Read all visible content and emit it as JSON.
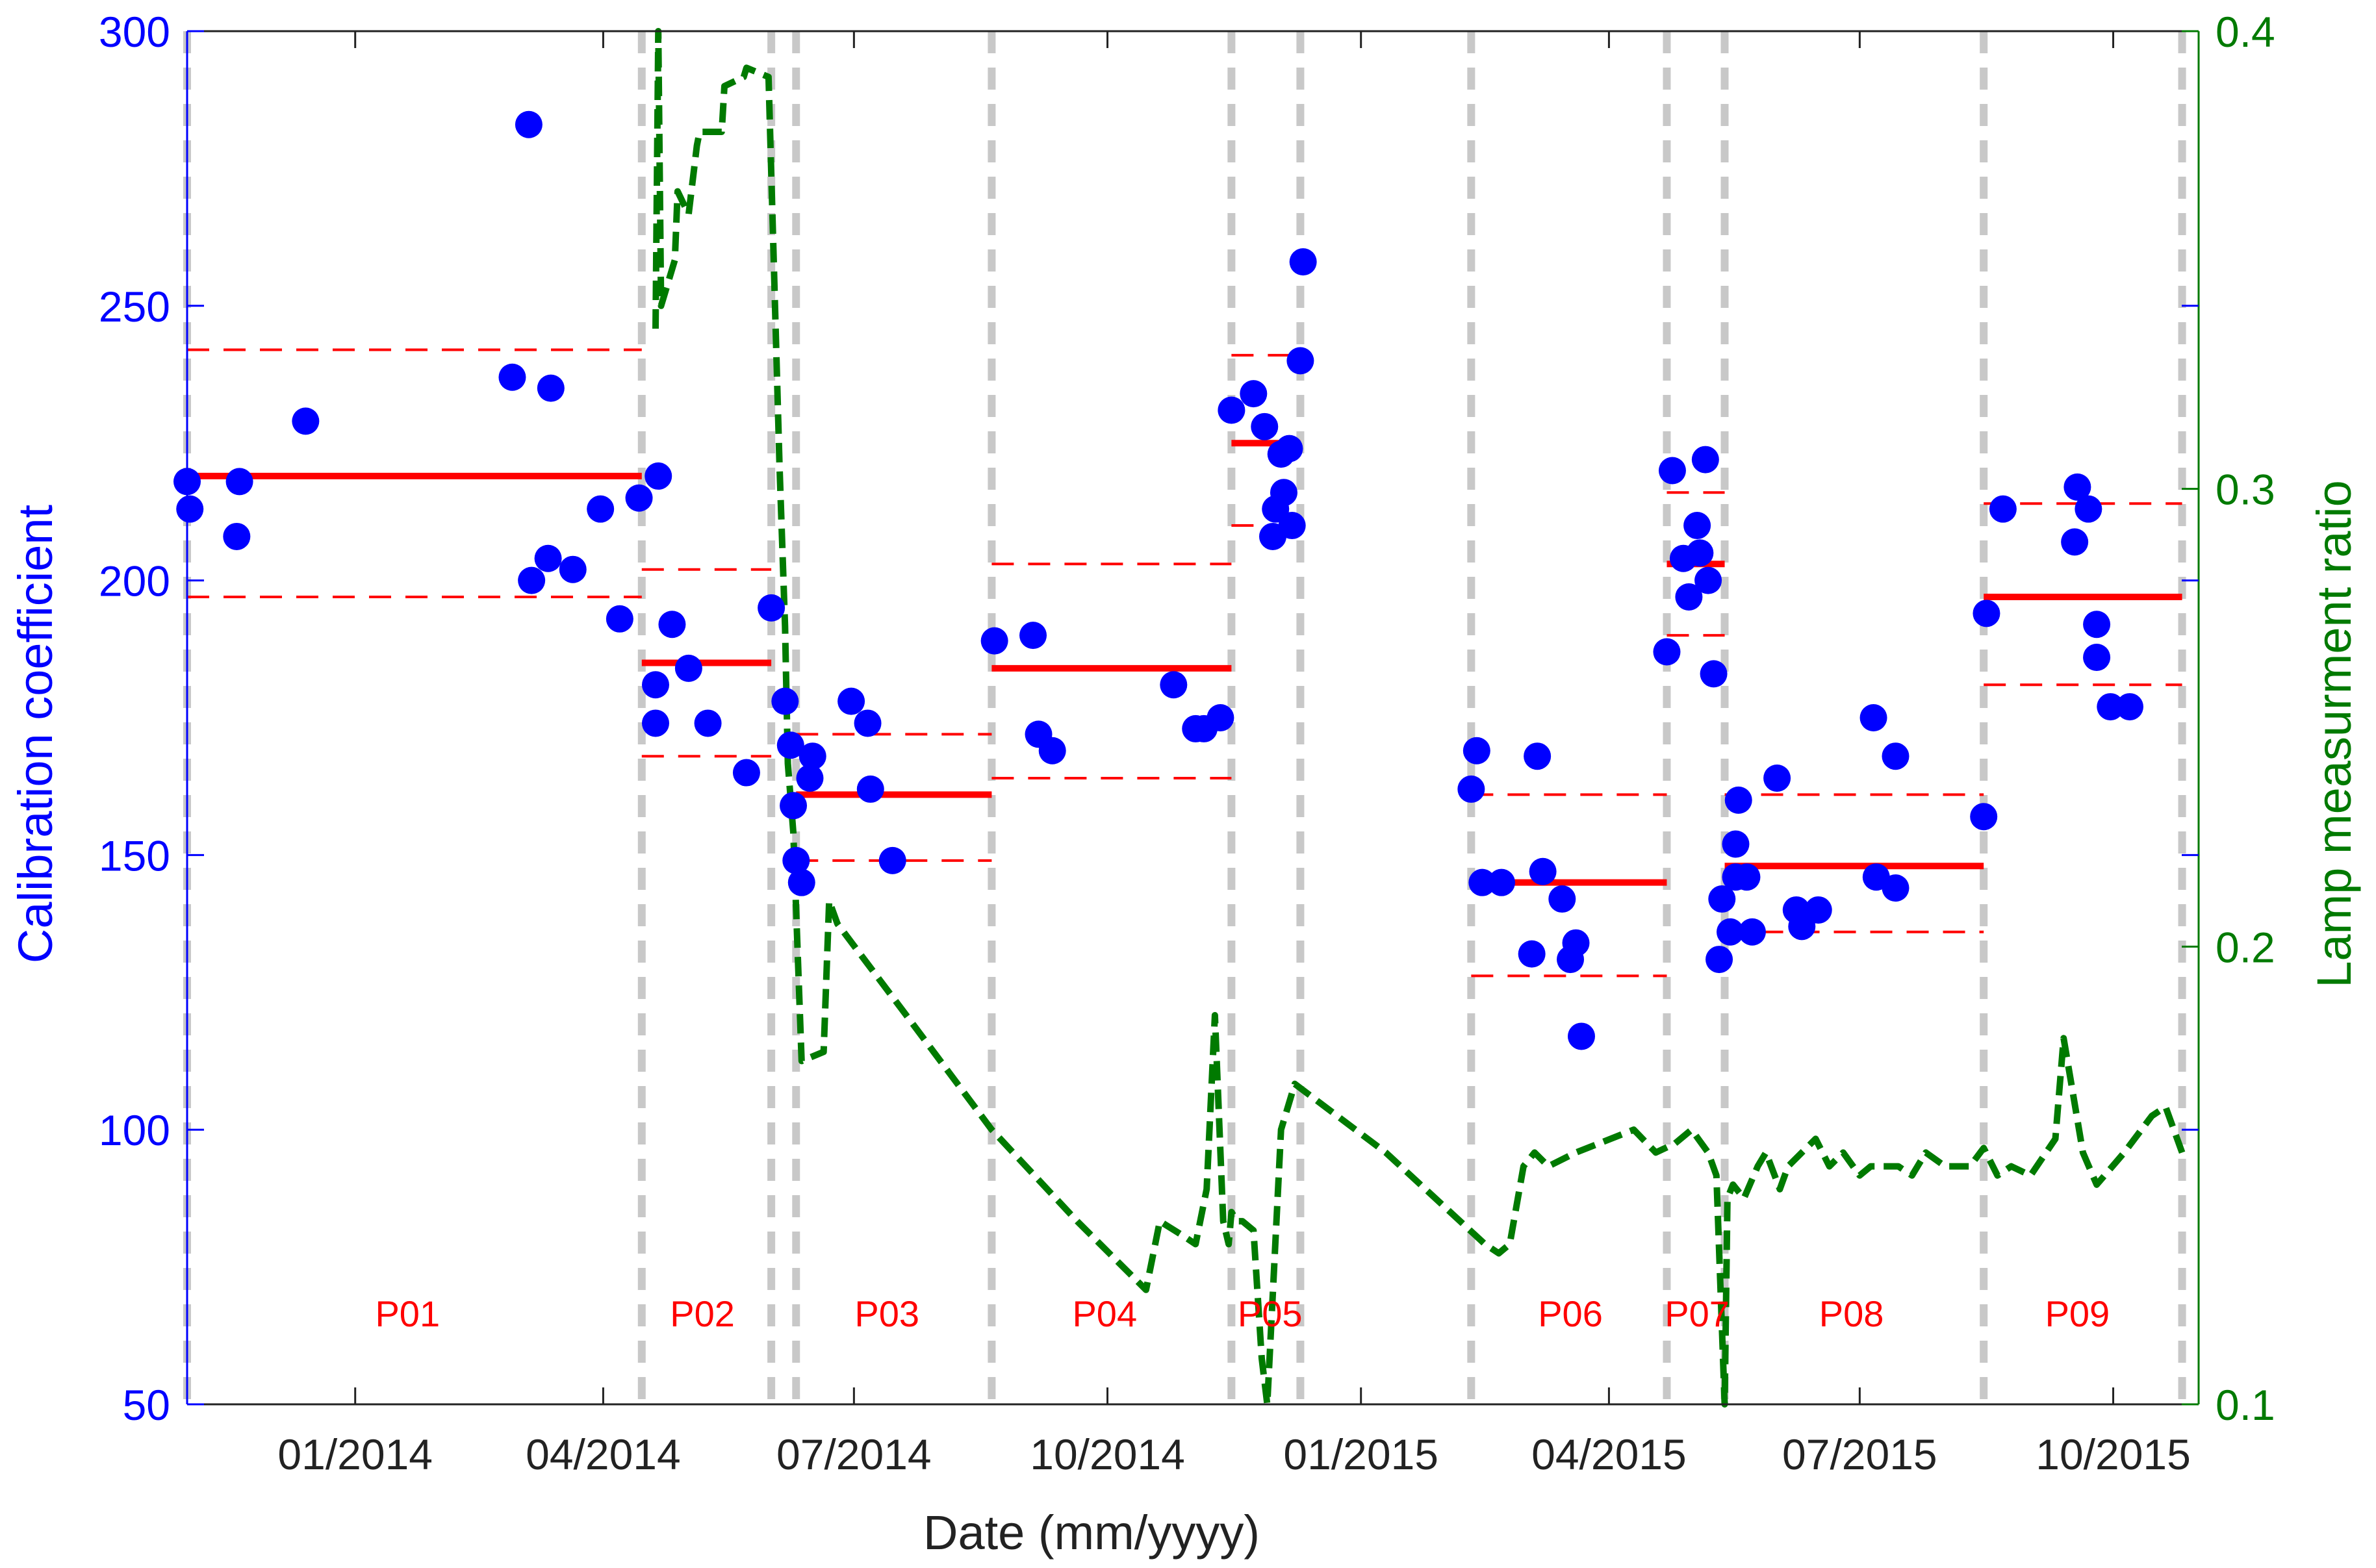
{
  "chart_data": {
    "type": "scatter",
    "title": "",
    "xlabel": "Date (mm/yyyy)",
    "ylabel_left": "Calibration coefficient",
    "ylabel_right": "Lamp measurment ratio",
    "x_range": [
      "2013-11-01",
      "2015-11-01"
    ],
    "x_ticks": [
      {
        "date": "2014-01-01",
        "label": "01/2014"
      },
      {
        "date": "2014-04-01",
        "label": "04/2014"
      },
      {
        "date": "2014-07-01",
        "label": "07/2014"
      },
      {
        "date": "2014-10-01",
        "label": "10/2014"
      },
      {
        "date": "2015-01-01",
        "label": "01/2015"
      },
      {
        "date": "2015-04-01",
        "label": "04/2015"
      },
      {
        "date": "2015-07-01",
        "label": "07/2015"
      },
      {
        "date": "2015-10-01",
        "label": "10/2015"
      }
    ],
    "ylim_left": [
      50,
      300
    ],
    "yticks_left": [
      "50",
      "100",
      "150",
      "200",
      "250",
      "300"
    ],
    "ylim_right": [
      0.1,
      0.4
    ],
    "yticks_right": [
      "0.1",
      "0.2",
      "0.3",
      "0.4"
    ],
    "grid": false,
    "colors": {
      "coefficient": "#0000ff",
      "period_mean": "#ff0000",
      "lamp_ratio": "#007a00",
      "boundary": "#c8c8c8"
    },
    "boundaries": [
      "2013-11-01",
      "2014-04-15",
      "2014-06-01",
      "2014-06-10",
      "2014-08-20",
      "2014-11-15",
      "2014-12-10",
      "2015-02-10",
      "2015-04-22",
      "2015-05-13",
      "2015-08-15",
      "2015-10-26"
    ],
    "periods": [
      {
        "label": "P01",
        "label_date": "2014-01-20",
        "start": "2013-11-01",
        "end": "2014-04-15",
        "mean": 219,
        "lower": 197,
        "upper": 242
      },
      {
        "label": "P02",
        "label_date": "2014-05-07",
        "start": "2014-04-15",
        "end": "2014-06-01",
        "mean": 185,
        "lower": 168,
        "upper": 202
      },
      {
        "label": "P03",
        "label_date": "2014-07-13",
        "start": "2014-06-10",
        "end": "2014-08-20",
        "mean": 161,
        "lower": 149,
        "upper": 172
      },
      {
        "label": "P04",
        "label_date": "2014-09-30",
        "start": "2014-08-20",
        "end": "2014-11-15",
        "mean": 184,
        "lower": 164,
        "upper": 203
      },
      {
        "label": "P05",
        "label_date": "2014-11-29",
        "start": "2014-11-15",
        "end": "2014-12-10",
        "mean": 225,
        "lower": 210,
        "upper": 241
      },
      {
        "label": "P06",
        "label_date": "2015-03-18",
        "start": "2015-02-10",
        "end": "2015-04-22",
        "mean": 145,
        "lower": 128,
        "upper": 161
      },
      {
        "label": "P07",
        "label_date": "2015-05-03",
        "start": "2015-04-22",
        "end": "2015-05-13",
        "mean": 203,
        "lower": 190,
        "upper": 216
      },
      {
        "label": "P08",
        "label_date": "2015-06-28",
        "start": "2015-05-13",
        "end": "2015-08-15",
        "mean": 148,
        "lower": 136,
        "upper": 161
      },
      {
        "label": "P09",
        "label_date": "2015-09-18",
        "start": "2015-08-15",
        "end": "2015-10-26",
        "mean": 197,
        "lower": 181,
        "upper": 214
      }
    ],
    "coefficient_points": [
      [
        "2013-11-01",
        218
      ],
      [
        "2013-11-02",
        213
      ],
      [
        "2013-11-20",
        218
      ],
      [
        "2013-11-19",
        208
      ],
      [
        "2013-12-14",
        229
      ],
      [
        "2014-02-27",
        237
      ],
      [
        "2014-03-05",
        283
      ],
      [
        "2014-03-06",
        200
      ],
      [
        "2014-03-12",
        204
      ],
      [
        "2014-03-13",
        235
      ],
      [
        "2014-03-21",
        202
      ],
      [
        "2014-03-31",
        213
      ],
      [
        "2014-04-07",
        193
      ],
      [
        "2014-04-14",
        215
      ],
      [
        "2014-04-21",
        219
      ],
      [
        "2014-04-20",
        181
      ],
      [
        "2014-04-20",
        174
      ],
      [
        "2014-04-26",
        192
      ],
      [
        "2014-05-02",
        184
      ],
      [
        "2014-05-09",
        174
      ],
      [
        "2014-05-23",
        165
      ],
      [
        "2014-06-01",
        195
      ],
      [
        "2014-06-06",
        178
      ],
      [
        "2014-06-08",
        170
      ],
      [
        "2014-06-09",
        159
      ],
      [
        "2014-06-10",
        149
      ],
      [
        "2014-06-12",
        145
      ],
      [
        "2014-06-15",
        164
      ],
      [
        "2014-06-16",
        168
      ],
      [
        "2014-06-30",
        178
      ],
      [
        "2014-07-06",
        174
      ],
      [
        "2014-07-07",
        162
      ],
      [
        "2014-07-15",
        149
      ],
      [
        "2014-08-21",
        189
      ],
      [
        "2014-09-04",
        190
      ],
      [
        "2014-09-06",
        172
      ],
      [
        "2014-09-11",
        169
      ],
      [
        "2014-10-25",
        181
      ],
      [
        "2014-11-02",
        173
      ],
      [
        "2014-11-05",
        173
      ],
      [
        "2014-11-11",
        175
      ],
      [
        "2014-11-15",
        231
      ],
      [
        "2014-11-23",
        234
      ],
      [
        "2014-11-27",
        228
      ],
      [
        "2014-11-30",
        208
      ],
      [
        "2014-12-01",
        213
      ],
      [
        "2014-12-03",
        223
      ],
      [
        "2014-12-04",
        216
      ],
      [
        "2014-12-07",
        210
      ],
      [
        "2014-12-06",
        224
      ],
      [
        "2014-12-10",
        240
      ],
      [
        "2014-12-11",
        258
      ],
      [
        "2015-02-10",
        162
      ],
      [
        "2015-02-12",
        169
      ],
      [
        "2015-02-14",
        145
      ],
      [
        "2015-02-21",
        145
      ],
      [
        "2015-03-04",
        132
      ],
      [
        "2015-03-06",
        168
      ],
      [
        "2015-03-08",
        147
      ],
      [
        "2015-03-15",
        142
      ],
      [
        "2015-03-18",
        131
      ],
      [
        "2015-03-20",
        134
      ],
      [
        "2015-03-22",
        117
      ],
      [
        "2015-04-22",
        187
      ],
      [
        "2015-04-24",
        220
      ],
      [
        "2015-04-28",
        204
      ],
      [
        "2015-04-30",
        197
      ],
      [
        "2015-05-03",
        210
      ],
      [
        "2015-05-04",
        205
      ],
      [
        "2015-05-06",
        222
      ],
      [
        "2015-05-07",
        200
      ],
      [
        "2015-05-09",
        183
      ],
      [
        "2015-05-11",
        131
      ],
      [
        "2015-05-12",
        142
      ],
      [
        "2015-05-15",
        136
      ],
      [
        "2015-05-17",
        152
      ],
      [
        "2015-05-17",
        146
      ],
      [
        "2015-05-18",
        160
      ],
      [
        "2015-05-21",
        146
      ],
      [
        "2015-05-23",
        136
      ],
      [
        "2015-06-01",
        164
      ],
      [
        "2015-06-08",
        140
      ],
      [
        "2015-06-10",
        137
      ],
      [
        "2015-06-16",
        140
      ],
      [
        "2015-07-06",
        175
      ],
      [
        "2015-07-07",
        146
      ],
      [
        "2015-07-14",
        144
      ],
      [
        "2015-07-14",
        168
      ],
      [
        "2015-08-15",
        157
      ],
      [
        "2015-08-16",
        194
      ],
      [
        "2015-08-22",
        213
      ],
      [
        "2015-09-18",
        217
      ],
      [
        "2015-09-17",
        207
      ],
      [
        "2015-09-22",
        213
      ],
      [
        "2015-09-25",
        192
      ],
      [
        "2015-09-25",
        186
      ],
      [
        "2015-09-30",
        177
      ],
      [
        "2015-10-07",
        177
      ]
    ],
    "lamp_ratio_line": [
      [
        "2014-04-20",
        0.335
      ],
      [
        "2014-04-21",
        0.4
      ],
      [
        "2014-04-22",
        0.34
      ],
      [
        "2014-04-27",
        0.35
      ],
      [
        "2014-04-28",
        0.365
      ],
      [
        "2014-05-02",
        0.36
      ],
      [
        "2014-05-05",
        0.375
      ],
      [
        "2014-05-06",
        0.378
      ],
      [
        "2014-05-14",
        0.378
      ],
      [
        "2014-05-15",
        0.388
      ],
      [
        "2014-05-22",
        0.39
      ],
      [
        "2014-05-23",
        0.392
      ],
      [
        "2014-05-31",
        0.39
      ],
      [
        "2014-06-04",
        0.305
      ],
      [
        "2014-06-06",
        0.27
      ],
      [
        "2014-06-07",
        0.24
      ],
      [
        "2014-06-09",
        0.225
      ],
      [
        "2014-06-12",
        0.175
      ],
      [
        "2014-06-20",
        0.177
      ],
      [
        "2014-06-22",
        0.21
      ],
      [
        "2014-06-25",
        0.205
      ],
      [
        "2014-07-20",
        0.185
      ],
      [
        "2014-08-20",
        0.16
      ],
      [
        "2014-09-20",
        0.14
      ],
      [
        "2014-10-15",
        0.125
      ],
      [
        "2014-10-20",
        0.14
      ],
      [
        "2014-10-28",
        0.137
      ],
      [
        "2014-11-02",
        0.135
      ],
      [
        "2014-11-06",
        0.147
      ],
      [
        "2014-11-09",
        0.185
      ],
      [
        "2014-11-12",
        0.14
      ],
      [
        "2014-11-14",
        0.135
      ],
      [
        "2014-11-15",
        0.142
      ],
      [
        "2014-11-17",
        0.14
      ],
      [
        "2014-11-19",
        0.14
      ],
      [
        "2014-11-23",
        0.138
      ],
      [
        "2014-11-26",
        0.11
      ],
      [
        "2014-11-28",
        0.1
      ],
      [
        "2014-12-03",
        0.16
      ],
      [
        "2014-12-08",
        0.17
      ],
      [
        "2015-01-10",
        0.155
      ],
      [
        "2015-02-15",
        0.135
      ],
      [
        "2015-02-20",
        0.133
      ],
      [
        "2015-02-24",
        0.135
      ],
      [
        "2015-03-01",
        0.152
      ],
      [
        "2015-03-05",
        0.155
      ],
      [
        "2015-03-10",
        0.152
      ],
      [
        "2015-03-20",
        0.155
      ],
      [
        "2015-04-10",
        0.16
      ],
      [
        "2015-04-18",
        0.155
      ],
      [
        "2015-04-25",
        0.157
      ],
      [
        "2015-05-01",
        0.16
      ],
      [
        "2015-05-07",
        0.155
      ],
      [
        "2015-05-10",
        0.15
      ],
      [
        "2015-05-13",
        0.1
      ],
      [
        "2015-05-14",
        0.145
      ],
      [
        "2015-05-16",
        0.148
      ],
      [
        "2015-05-20",
        0.145
      ],
      [
        "2015-05-25",
        0.152
      ],
      [
        "2015-05-28",
        0.155
      ],
      [
        "2015-06-02",
        0.147
      ],
      [
        "2015-06-05",
        0.152
      ],
      [
        "2015-06-10",
        0.155
      ],
      [
        "2015-06-15",
        0.158
      ],
      [
        "2015-06-20",
        0.152
      ],
      [
        "2015-06-25",
        0.155
      ],
      [
        "2015-07-01",
        0.15
      ],
      [
        "2015-07-05",
        0.152
      ],
      [
        "2015-07-15",
        0.152
      ],
      [
        "2015-07-20",
        0.15
      ],
      [
        "2015-07-25",
        0.155
      ],
      [
        "2015-08-01",
        0.152
      ],
      [
        "2015-08-10",
        0.152
      ],
      [
        "2015-08-15",
        0.156
      ],
      [
        "2015-08-20",
        0.15
      ],
      [
        "2015-08-25",
        0.152
      ],
      [
        "2015-09-01",
        0.15
      ],
      [
        "2015-09-10",
        0.158
      ],
      [
        "2015-09-13",
        0.18
      ],
      [
        "2015-09-20",
        0.155
      ],
      [
        "2015-09-25",
        0.148
      ],
      [
        "2015-10-05",
        0.155
      ],
      [
        "2015-10-15",
        0.163
      ],
      [
        "2015-10-20",
        0.165
      ],
      [
        "2015-10-26",
        0.155
      ]
    ]
  }
}
